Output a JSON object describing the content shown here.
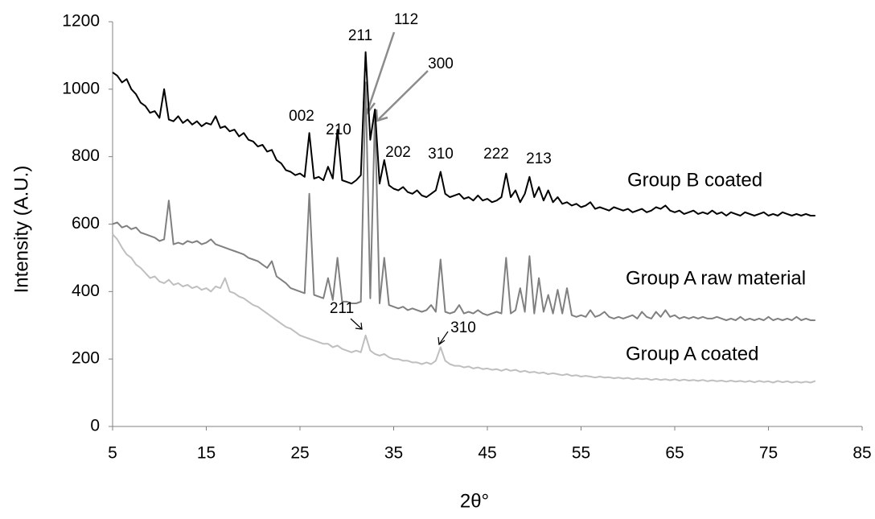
{
  "chart_data": {
    "type": "line",
    "y_label": "Intensity (A.U.)",
    "x_label": "2θ°",
    "xlim": [
      5,
      85
    ],
    "xticks": [
      5,
      15,
      25,
      35,
      45,
      55,
      65,
      75,
      85
    ],
    "ylim": [
      0,
      1200
    ],
    "yticks": [
      0,
      200,
      400,
      600,
      800,
      1000,
      1200
    ],
    "grid": false,
    "annotations": [
      "211",
      "112",
      "300",
      "002",
      "210",
      "202",
      "310",
      "222",
      "213",
      "211",
      "310"
    ],
    "x": [
      5,
      5.5,
      6,
      6.5,
      7,
      7.5,
      8,
      8.5,
      9,
      9.5,
      10,
      10.5,
      11,
      11.5,
      12,
      12.5,
      13,
      13.5,
      14,
      14.5,
      15,
      15.5,
      16,
      16.5,
      17,
      17.5,
      18,
      18.5,
      19,
      19.5,
      20,
      20.5,
      21,
      21.5,
      22,
      22.5,
      23,
      23.5,
      24,
      24.5,
      25,
      25.5,
      26,
      26.5,
      27,
      27.5,
      28,
      28.5,
      29,
      29.5,
      30,
      30.5,
      31,
      31.5,
      32,
      32.5,
      33,
      33.5,
      34,
      34.5,
      35,
      35.5,
      36,
      36.5,
      37,
      37.5,
      38,
      38.5,
      39,
      39.5,
      40,
      40.5,
      41,
      41.5,
      42,
      42.5,
      43,
      43.5,
      44,
      44.5,
      45,
      45.5,
      46,
      46.5,
      47,
      47.5,
      48,
      48.5,
      49,
      49.5,
      50,
      50.5,
      51,
      51.5,
      52,
      52.5,
      53,
      53.5,
      54,
      54.5,
      55,
      55.5,
      56,
      56.5,
      57,
      57.5,
      58,
      58.5,
      59,
      59.5,
      60,
      60.5,
      61,
      61.5,
      62,
      62.5,
      63,
      63.5,
      64,
      64.5,
      65,
      65.5,
      66,
      66.5,
      67,
      67.5,
      68,
      68.5,
      69,
      69.5,
      70,
      70.5,
      71,
      71.5,
      72,
      72.5,
      73,
      73.5,
      74,
      74.5,
      75,
      75.5,
      76,
      76.5,
      77,
      77.5,
      78,
      78.5,
      79,
      79.5,
      80
    ],
    "series": [
      {
        "name": "Group B coated",
        "color": "#000000",
        "values": [
          1050,
          1040,
          1020,
          1030,
          1000,
          985,
          960,
          950,
          930,
          935,
          915,
          1000,
          910,
          905,
          920,
          900,
          910,
          895,
          905,
          890,
          900,
          895,
          920,
          885,
          890,
          875,
          880,
          860,
          870,
          850,
          845,
          830,
          835,
          815,
          820,
          790,
          780,
          760,
          755,
          745,
          750,
          740,
          870,
          735,
          740,
          730,
          770,
          735,
          880,
          730,
          725,
          720,
          730,
          745,
          1110,
          850,
          940,
          720,
          790,
          715,
          705,
          700,
          710,
          695,
          690,
          700,
          685,
          680,
          690,
          700,
          755,
          690,
          680,
          685,
          690,
          675,
          680,
          670,
          685,
          670,
          675,
          665,
          670,
          680,
          750,
          680,
          700,
          665,
          690,
          740,
          680,
          710,
          670,
          700,
          665,
          680,
          660,
          665,
          655,
          660,
          650,
          655,
          665,
          645,
          650,
          645,
          640,
          650,
          645,
          640,
          645,
          635,
          640,
          645,
          635,
          640,
          650,
          645,
          655,
          640,
          635,
          640,
          630,
          635,
          640,
          630,
          635,
          630,
          640,
          630,
          635,
          625,
          635,
          630,
          625,
          635,
          630,
          625,
          630,
          635,
          625,
          630,
          625,
          635,
          630,
          625,
          630,
          625,
          630,
          625,
          625
        ]
      },
      {
        "name": "Group A raw material",
        "color": "#808080",
        "values": [
          600,
          605,
          590,
          595,
          585,
          590,
          575,
          570,
          565,
          560,
          550,
          555,
          670,
          540,
          545,
          540,
          550,
          545,
          550,
          540,
          545,
          555,
          540,
          535,
          530,
          525,
          520,
          515,
          510,
          500,
          495,
          490,
          480,
          470,
          490,
          445,
          435,
          425,
          410,
          405,
          400,
          395,
          690,
          390,
          385,
          380,
          440,
          375,
          500,
          370,
          370,
          365,
          365,
          370,
          1020,
          380,
          930,
          365,
          500,
          360,
          355,
          350,
          355,
          345,
          350,
          345,
          340,
          345,
          360,
          340,
          495,
          340,
          335,
          340,
          360,
          335,
          340,
          335,
          345,
          335,
          330,
          335,
          340,
          335,
          500,
          335,
          345,
          410,
          340,
          505,
          335,
          440,
          340,
          390,
          335,
          405,
          335,
          410,
          330,
          325,
          330,
          325,
          345,
          325,
          330,
          340,
          325,
          320,
          325,
          320,
          325,
          330,
          320,
          340,
          325,
          320,
          340,
          325,
          345,
          325,
          330,
          320,
          325,
          320,
          325,
          320,
          325,
          320,
          320,
          325,
          320,
          315,
          320,
          315,
          325,
          315,
          320,
          315,
          320,
          315,
          325,
          315,
          320,
          315,
          320,
          315,
          325,
          315,
          320,
          315,
          315
        ]
      },
      {
        "name": "Group A coated",
        "color": "#bfbfbf",
        "values": [
          570,
          555,
          530,
          510,
          500,
          480,
          470,
          455,
          440,
          445,
          430,
          425,
          435,
          420,
          425,
          415,
          420,
          410,
          415,
          405,
          410,
          400,
          415,
          410,
          440,
          400,
          395,
          385,
          380,
          370,
          360,
          355,
          345,
          335,
          325,
          315,
          305,
          295,
          290,
          280,
          270,
          265,
          260,
          255,
          250,
          245,
          245,
          235,
          240,
          230,
          225,
          220,
          225,
          220,
          270,
          225,
          215,
          210,
          215,
          205,
          200,
          200,
          195,
          195,
          190,
          190,
          185,
          190,
          185,
          195,
          235,
          195,
          185,
          180,
          180,
          175,
          178,
          172,
          175,
          170,
          172,
          168,
          170,
          165,
          170,
          165,
          168,
          162,
          165,
          160,
          162,
          158,
          160,
          155,
          158,
          155,
          152,
          155,
          150,
          152,
          148,
          150,
          148,
          145,
          148,
          145,
          146,
          143,
          145,
          142,
          144,
          140,
          143,
          140,
          142,
          138,
          141,
          138,
          140,
          137,
          140,
          136,
          139,
          136,
          138,
          135,
          138,
          134,
          137,
          134,
          136,
          133,
          136,
          133,
          135,
          132,
          135,
          131,
          135,
          132,
          134,
          130,
          135,
          131,
          134,
          130,
          133,
          130,
          133,
          130,
          135
        ]
      }
    ]
  }
}
